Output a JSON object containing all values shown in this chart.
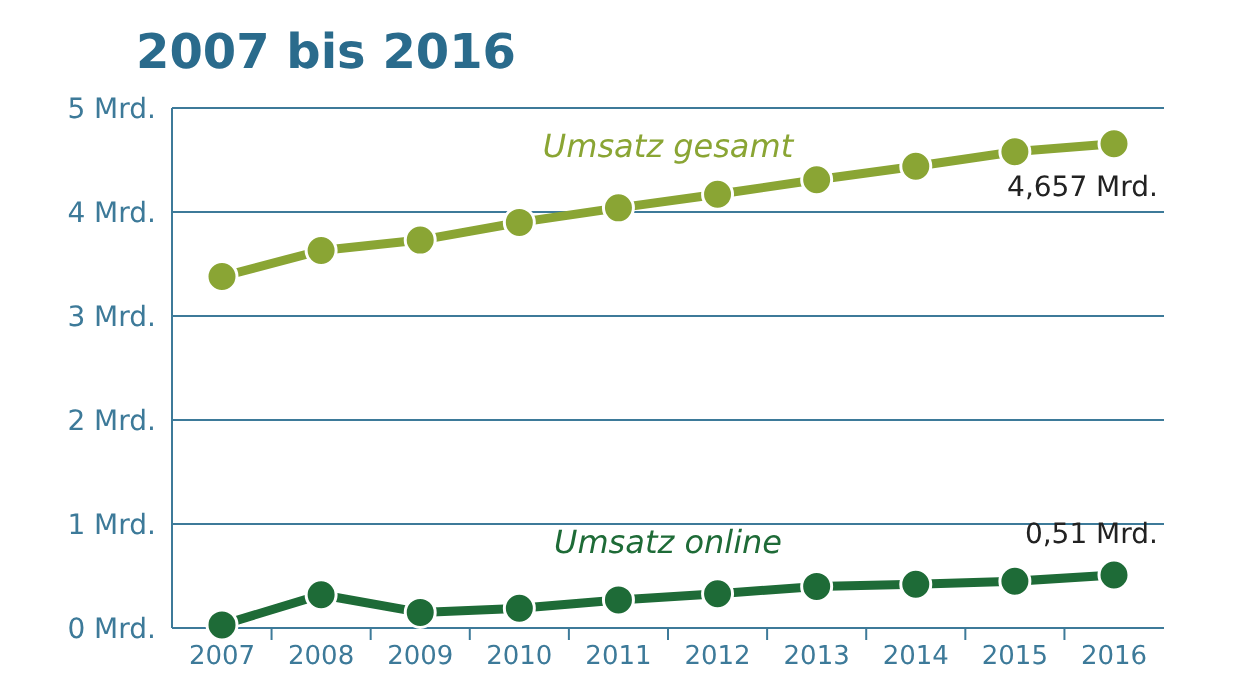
{
  "chart_data": {
    "type": "line",
    "title": "2007 bis 2016",
    "categories": [
      "2007",
      "2008",
      "2009",
      "2010",
      "2011",
      "2012",
      "2013",
      "2014",
      "2015",
      "2016"
    ],
    "series": [
      {
        "name": "Umsatz gesamt",
        "color": "#8aa534",
        "values": [
          3.38,
          3.63,
          3.73,
          3.9,
          4.04,
          4.17,
          4.31,
          4.44,
          4.58,
          4.657
        ]
      },
      {
        "name": "Umsatz online",
        "color": "#1e6b37",
        "values": [
          0.03,
          0.32,
          0.15,
          0.19,
          0.27,
          0.33,
          0.4,
          0.42,
          0.45,
          0.51
        ]
      }
    ],
    "ylim": [
      0,
      5
    ],
    "yticks": [
      {
        "value": 0,
        "label": "0 Mrd."
      },
      {
        "value": 1,
        "label": "1 Mrd."
      },
      {
        "value": 2,
        "label": "2 Mrd."
      },
      {
        "value": 3,
        "label": "3 Mrd."
      },
      {
        "value": 4,
        "label": "4 Mrd."
      },
      {
        "value": 5,
        "label": "5 Mrd."
      }
    ],
    "grid": "y",
    "marker": "circle",
    "line_style": "solid",
    "annotations": [
      {
        "text": "4,657 Mrd.",
        "x": "2016",
        "y": 4.657
      },
      {
        "text": "0,51 Mrd.",
        "x": "2016",
        "y": 0.51
      }
    ]
  }
}
